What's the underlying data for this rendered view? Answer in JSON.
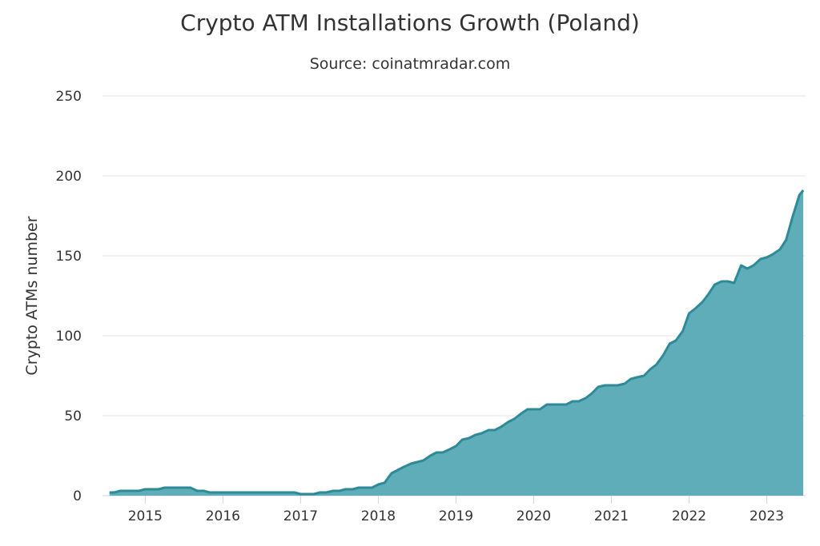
{
  "chart_data": {
    "type": "area",
    "title": "Crypto ATM Installations Growth (Poland)",
    "subtitle": "Source: coinatmradar.com",
    "ylabel": "Crypto ATMs number",
    "xlabel": "",
    "ylim": [
      0,
      250
    ],
    "yticks": [
      "0",
      "50",
      "100",
      "150",
      "200",
      "250"
    ],
    "xticks": [
      "2015",
      "2016",
      "2017",
      "2018",
      "2019",
      "2020",
      "2021",
      "2022",
      "2023"
    ],
    "grid": true,
    "legend": "none",
    "color_fill": "#4aa2b0",
    "color_line": "#2f8a98",
    "series": [
      {
        "x": [
          2014.54,
          2014.6,
          2014.68,
          2014.76,
          2014.84,
          2014.92,
          2015.0,
          2015.17,
          2015.25,
          2015.42,
          2015.58,
          2015.67,
          2015.75,
          2015.83,
          2016.0,
          2016.5,
          2016.92,
          2017.0,
          2017.17,
          2017.25,
          2017.33,
          2017.42,
          2017.5,
          2017.58,
          2017.67,
          2017.75,
          2017.83,
          2017.92,
          2018.0,
          2018.08,
          2018.17,
          2018.25,
          2018.33,
          2018.42,
          2018.5,
          2018.58,
          2018.67,
          2018.75,
          2018.83,
          2018.92,
          2019.0,
          2019.08,
          2019.17,
          2019.25,
          2019.33,
          2019.42,
          2019.5,
          2019.58,
          2019.67,
          2019.75,
          2019.83,
          2019.92,
          2020.0,
          2020.08,
          2020.17,
          2020.25,
          2020.33,
          2020.42,
          2020.5,
          2020.58,
          2020.67,
          2020.75,
          2020.83,
          2020.92,
          2021.0,
          2021.08,
          2021.17,
          2021.25,
          2021.33,
          2021.42,
          2021.5,
          2021.58,
          2021.67,
          2021.75,
          2021.83,
          2021.92,
          2022.0,
          2022.08,
          2022.17,
          2022.25,
          2022.33,
          2022.42,
          2022.5,
          2022.58,
          2022.67,
          2022.75,
          2022.83,
          2022.92,
          2023.0,
          2023.08,
          2023.17,
          2023.25,
          2023.33,
          2023.42,
          2023.47
        ],
        "y": [
          2,
          2,
          3,
          3,
          3,
          3,
          4,
          4,
          5,
          5,
          5,
          3,
          3,
          2,
          2,
          2,
          2,
          1,
          1,
          2,
          2,
          3,
          3,
          4,
          4,
          5,
          5,
          5,
          7,
          8,
          14,
          16,
          18,
          20,
          21,
          22,
          25,
          27,
          27,
          29,
          31,
          35,
          36,
          38,
          39,
          41,
          41,
          43,
          46,
          48,
          51,
          54,
          54,
          54,
          57,
          57,
          57,
          57,
          59,
          59,
          61,
          64,
          68,
          69,
          69,
          69,
          70,
          73,
          74,
          75,
          79,
          82,
          88,
          95,
          97,
          103,
          114,
          117,
          121,
          126,
          132,
          134,
          134,
          133,
          144,
          142,
          144,
          148,
          149,
          151,
          154,
          160,
          174,
          188,
          191
        ]
      }
    ]
  }
}
